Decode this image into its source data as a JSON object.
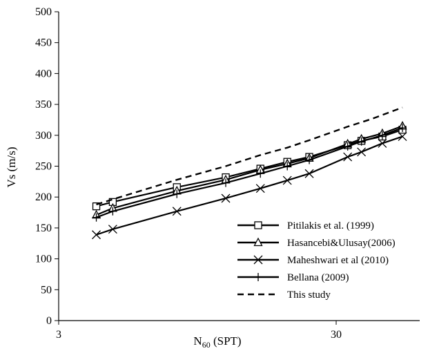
{
  "chart_data": {
    "type": "line",
    "xlabel_main": "N",
    "xlabel_sub": "60",
    "xlabel_rest": " (SPT)",
    "ylabel": "Vs (m/s)",
    "x_scale": "log",
    "xlim": [
      3,
      60
    ],
    "ylim": [
      0,
      500
    ],
    "x_ticks": [
      "3",
      "30"
    ],
    "y_ticks": [
      "0",
      "50",
      "100",
      "150",
      "200",
      "250",
      "300",
      "350",
      "400",
      "450",
      "500"
    ],
    "legend_position": "bottom-right",
    "grid": false,
    "series": [
      {
        "name": "Pitilakis et al. (1999)",
        "marker": "square",
        "color": "#000000",
        "x": [
          4.1,
          4.7,
          8,
          12,
          16,
          20,
          24,
          33,
          37,
          44,
          52
        ],
        "y": [
          185,
          192,
          216,
          232,
          246,
          257,
          265,
          284,
          291,
          298,
          309
        ]
      },
      {
        "name": "Hasancebi&Ulusay(2006)",
        "marker": "triangle",
        "color": "#000000",
        "x": [
          4.1,
          4.7,
          8,
          12,
          16,
          20,
          24,
          33,
          37,
          44,
          52
        ],
        "y": [
          171,
          182,
          210,
          228,
          244,
          254,
          263,
          286,
          294,
          303,
          315
        ]
      },
      {
        "name": "Maheshwari et al (2010)",
        "marker": "x",
        "color": "#000000",
        "x": [
          4.1,
          4.7,
          8,
          12,
          16,
          20,
          24,
          33,
          37,
          44,
          52
        ],
        "y": [
          139,
          148,
          177,
          198,
          214,
          227,
          238,
          265,
          273,
          287,
          298
        ]
      },
      {
        "name": "Bellana (2009)",
        "marker": "plus",
        "color": "#000000",
        "x": [
          4.1,
          4.7,
          8,
          12,
          16,
          20,
          24,
          33,
          37,
          44,
          52
        ],
        "y": [
          167,
          177,
          205,
          223,
          238,
          250,
          260,
          282,
          290,
          300,
          312
        ]
      },
      {
        "name": "This study",
        "marker": "none",
        "dashed": true,
        "color": "#000000",
        "x": [
          4.1,
          5,
          8,
          12,
          16,
          20,
          24,
          33,
          40,
          52
        ],
        "y": [
          188,
          200,
          228,
          250,
          268,
          280,
          292,
          314,
          326,
          345
        ]
      }
    ]
  }
}
